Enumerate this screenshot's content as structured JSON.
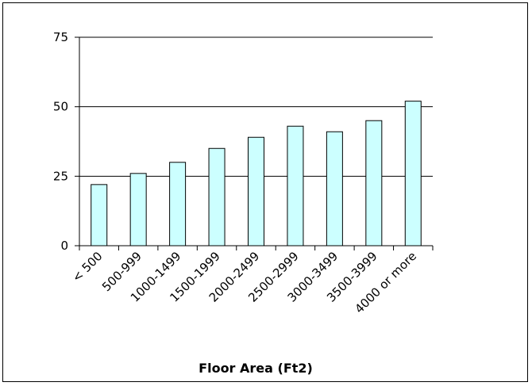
{
  "chart_data": {
    "type": "bar",
    "title": "",
    "xlabel": "Floor Area (Ft2)",
    "ylabel": "",
    "categories": [
      "< 500",
      "500-999",
      "1000-1499",
      "1500-1999",
      "2000-2499",
      "2500-2999",
      "3000-3499",
      "3500-3999",
      "4000 or more"
    ],
    "values": [
      22,
      26,
      30,
      35,
      39,
      43,
      41,
      45,
      52
    ],
    "ylim": [
      0,
      75
    ],
    "yticks": [
      0,
      25,
      50,
      75
    ],
    "grid": true,
    "legend": "none",
    "colors": {
      "bar_fill": "#ccffff",
      "bar_stroke": "#000000",
      "grid": "#000000",
      "axis": "#000000"
    }
  }
}
